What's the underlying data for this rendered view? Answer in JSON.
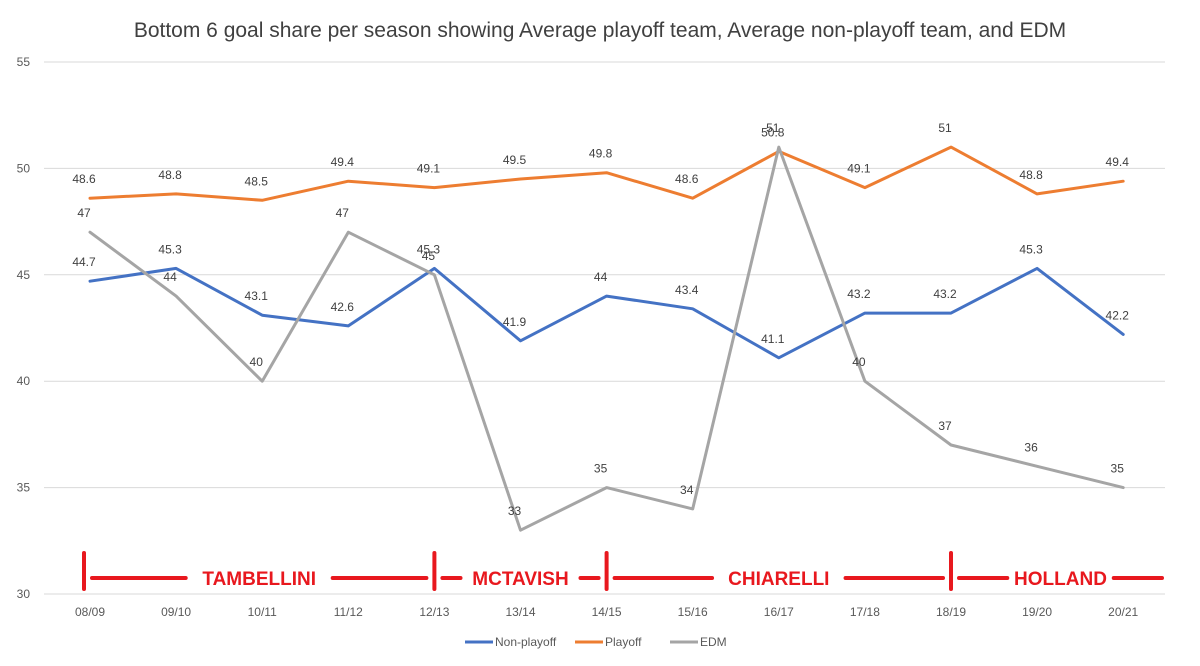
{
  "chart_data": {
    "type": "line",
    "title": "Bottom 6 goal share per season showing Average playoff team, Average non-playoff team, and EDM",
    "categories": [
      "08/09",
      "09/10",
      "10/11",
      "11/12",
      "12/13",
      "13/14",
      "14/15",
      "15/16",
      "16/17",
      "17/18",
      "18/19",
      "19/20",
      "20/21"
    ],
    "y_ticks": [
      "30",
      "35",
      "40",
      "45",
      "50",
      "55"
    ],
    "ylim": [
      30,
      55
    ],
    "grid": "horizontal",
    "legend_position": "bottom",
    "series": [
      {
        "name": "Non-playoff",
        "color": "#4472c4",
        "values": [
          44.7,
          45.3,
          43.1,
          42.6,
          45.3,
          41.9,
          44,
          43.4,
          41.1,
          43.2,
          43.2,
          45.3,
          42.2
        ],
        "labels": [
          "44.7",
          "45.3",
          "43.1",
          "42.6",
          "45.3",
          "41.9",
          "44",
          "43.4",
          "41.1",
          "43.2",
          "43.2",
          "45.3",
          "42.2"
        ]
      },
      {
        "name": "Playoff",
        "color": "#ed7d31",
        "values": [
          48.6,
          48.8,
          48.5,
          49.4,
          49.1,
          49.5,
          49.8,
          48.6,
          50.8,
          49.1,
          51,
          48.8,
          49.4
        ],
        "labels": [
          "48.6",
          "48.8",
          "48.5",
          "49.4",
          "49.1",
          "49.5",
          "49.8",
          "48.6",
          "50.8",
          "49.1",
          "51",
          "48.8",
          "49.4"
        ]
      },
      {
        "name": "EDM",
        "color": "#a5a5a5",
        "values": [
          47,
          44,
          40,
          47,
          45,
          33,
          35,
          34,
          51,
          40,
          37,
          36,
          35
        ],
        "labels": [
          "47",
          "44",
          "40",
          "47",
          "45",
          "33",
          "35",
          "34",
          "51",
          "40",
          "37",
          "36",
          "35"
        ]
      }
    ],
    "annotations": {
      "color": "#e8181e",
      "eras": [
        {
          "name": "TAMBELLINI",
          "from": "08/09",
          "to": "12/13"
        },
        {
          "name": "MCTAVISH",
          "from": "12/13",
          "to": "14/15"
        },
        {
          "name": "CHIARELLI",
          "from": "14/15",
          "to": "18/19"
        },
        {
          "name": "HOLLAND",
          "from": "18/19",
          "to": "20/21"
        }
      ]
    }
  }
}
